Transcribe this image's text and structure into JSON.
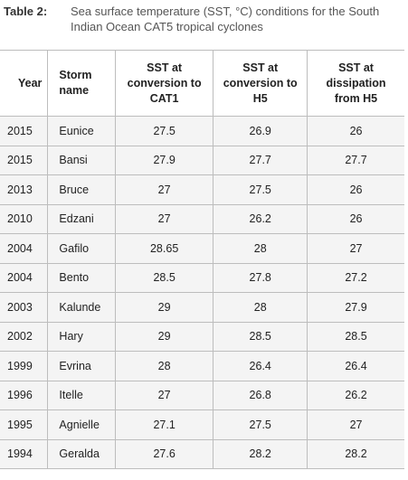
{
  "caption": {
    "label": "Table 2:",
    "text": "Sea surface temperature (SST, °C) conditions for the South Indian Ocean CAT5 tropical cyclones"
  },
  "table": {
    "header": [
      "Year",
      "Storm name",
      "SST at conversion to CAT1",
      "SST at conversion to H5",
      "SST at dissipation from H5"
    ],
    "rows": [
      [
        "2015",
        "Eunice",
        "27.5",
        "26.9",
        "26"
      ],
      [
        "2015",
        "Bansi",
        "27.9",
        "27.7",
        "27.7"
      ],
      [
        "2013",
        "Bruce",
        "27",
        "27.5",
        "26"
      ],
      [
        "2010",
        "Edzani",
        "27",
        "26.2",
        "26"
      ],
      [
        "2004",
        "Gafilo",
        "28.65",
        "28",
        "27"
      ],
      [
        "2004",
        "Bento",
        "28.5",
        "27.8",
        "27.2"
      ],
      [
        "2003",
        "Kalunde",
        "29",
        "28",
        "27.9"
      ],
      [
        "2002",
        "Hary",
        "29",
        "28.5",
        "28.5"
      ],
      [
        "1999",
        "Evrina",
        "28",
        "26.4",
        "26.4"
      ],
      [
        "1996",
        "Itelle",
        "27",
        "26.8",
        "26.2"
      ],
      [
        "1995",
        "Agnielle",
        "27.1",
        "27.5",
        "27"
      ],
      [
        "1994",
        "Geralda",
        "27.6",
        "28.2",
        "28.2"
      ]
    ]
  }
}
